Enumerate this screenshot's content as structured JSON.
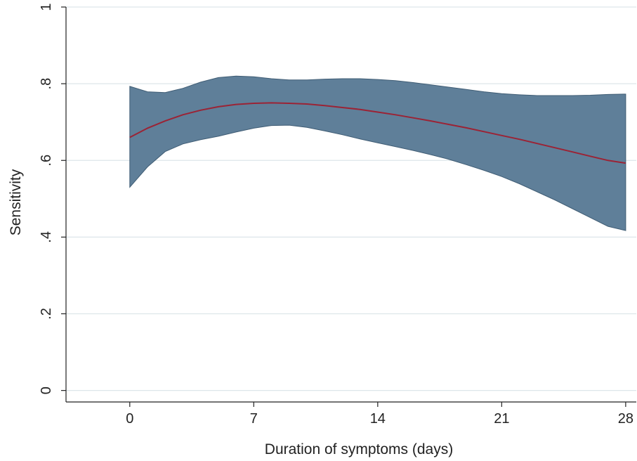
{
  "chart_data": {
    "type": "line",
    "xlabel": "Duration of symptoms (days)",
    "ylabel": "Sensitivity",
    "xlim": [
      -3.6,
      28.6
    ],
    "ylim": [
      -0.03,
      1.0
    ],
    "x_ticks": [
      {
        "value": 0,
        "label": "0"
      },
      {
        "value": 7,
        "label": "7"
      },
      {
        "value": 14,
        "label": "14"
      },
      {
        "value": 21,
        "label": "21"
      },
      {
        "value": 28,
        "label": "28"
      }
    ],
    "y_ticks": [
      {
        "value": 0,
        "label": "0"
      },
      {
        "value": 0.2,
        "label": ".2"
      },
      {
        "value": 0.4,
        "label": ".4"
      },
      {
        "value": 0.6,
        "label": ".6"
      },
      {
        "value": 0.8,
        "label": ".8"
      },
      {
        "value": 1,
        "label": "1"
      }
    ],
    "grid": "horizontal",
    "series": [
      {
        "type": "line",
        "color": "#9b2335",
        "x": [
          0,
          1,
          2,
          3,
          4,
          5,
          6,
          7,
          8,
          9,
          10,
          11,
          12,
          13,
          14,
          15,
          16,
          17,
          18,
          19,
          20,
          21,
          22,
          23,
          24,
          25,
          26,
          27,
          28
        ],
        "y": [
          0.66,
          0.684,
          0.703,
          0.719,
          0.731,
          0.74,
          0.746,
          0.749,
          0.75,
          0.749,
          0.747,
          0.743,
          0.738,
          0.733,
          0.726,
          0.719,
          0.711,
          0.703,
          0.694,
          0.685,
          0.675,
          0.665,
          0.655,
          0.644,
          0.633,
          0.622,
          0.611,
          0.6,
          0.593
        ]
      },
      {
        "type": "band",
        "color": "#5f7f99",
        "x": [
          0,
          1,
          2,
          3,
          4,
          5,
          6,
          7,
          8,
          9,
          10,
          11,
          12,
          13,
          14,
          15,
          16,
          17,
          18,
          19,
          20,
          21,
          22,
          23,
          24,
          25,
          26,
          27,
          28
        ],
        "upper": [
          0.793,
          0.779,
          0.777,
          0.788,
          0.804,
          0.816,
          0.82,
          0.818,
          0.813,
          0.81,
          0.81,
          0.812,
          0.813,
          0.813,
          0.811,
          0.808,
          0.803,
          0.797,
          0.791,
          0.785,
          0.779,
          0.774,
          0.771,
          0.769,
          0.769,
          0.769,
          0.77,
          0.772,
          0.773
        ],
        "lower": [
          0.53,
          0.583,
          0.623,
          0.643,
          0.654,
          0.663,
          0.674,
          0.684,
          0.691,
          0.692,
          0.686,
          0.677,
          0.667,
          0.656,
          0.646,
          0.636,
          0.626,
          0.615,
          0.603,
          0.589,
          0.574,
          0.558,
          0.539,
          0.518,
          0.497,
          0.474,
          0.451,
          0.428,
          0.417
        ]
      }
    ]
  }
}
